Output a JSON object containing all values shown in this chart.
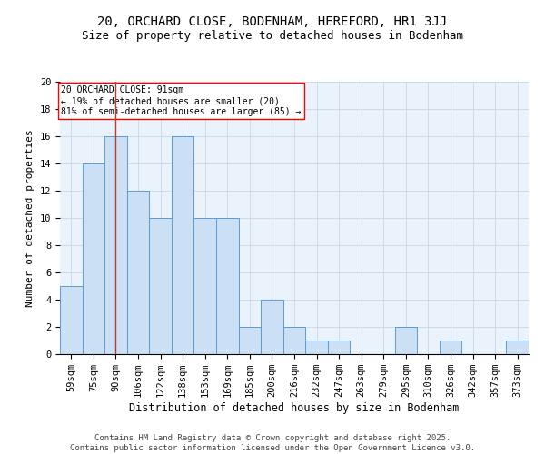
{
  "title1": "20, ORCHARD CLOSE, BODENHAM, HEREFORD, HR1 3JJ",
  "title2": "Size of property relative to detached houses in Bodenham",
  "xlabel": "Distribution of detached houses by size in Bodenham",
  "ylabel": "Number of detached properties",
  "bar_labels": [
    "59sqm",
    "75sqm",
    "90sqm",
    "106sqm",
    "122sqm",
    "138sqm",
    "153sqm",
    "169sqm",
    "185sqm",
    "200sqm",
    "216sqm",
    "232sqm",
    "247sqm",
    "263sqm",
    "279sqm",
    "295sqm",
    "310sqm",
    "326sqm",
    "342sqm",
    "357sqm",
    "373sqm"
  ],
  "bar_heights": [
    5,
    14,
    16,
    12,
    10,
    16,
    10,
    10,
    2,
    4,
    2,
    1,
    1,
    0,
    0,
    2,
    0,
    1,
    0,
    0,
    1
  ],
  "bar_color": "#cce0f5",
  "bar_edge_color": "#5b9bd5",
  "vline_index": 2,
  "vline_color": "#c0392b",
  "annotation_text": "20 ORCHARD CLOSE: 91sqm\n← 19% of detached houses are smaller (20)\n81% of semi-detached houses are larger (85) →",
  "ylim": [
    0,
    20
  ],
  "yticks": [
    0,
    2,
    4,
    6,
    8,
    10,
    12,
    14,
    16,
    18,
    20
  ],
  "title_fontsize": 10,
  "subtitle_fontsize": 9,
  "xlabel_fontsize": 8.5,
  "ylabel_fontsize": 8,
  "tick_fontsize": 7.5,
  "annotation_fontsize": 7,
  "footer_text": "Contains HM Land Registry data © Crown copyright and database right 2025.\nContains public sector information licensed under the Open Government Licence v3.0.",
  "footer_fontsize": 6.5,
  "bg_color": "#ffffff",
  "ax_bg_color": "#eaf2fb",
  "grid_color": "#c8d8e8"
}
